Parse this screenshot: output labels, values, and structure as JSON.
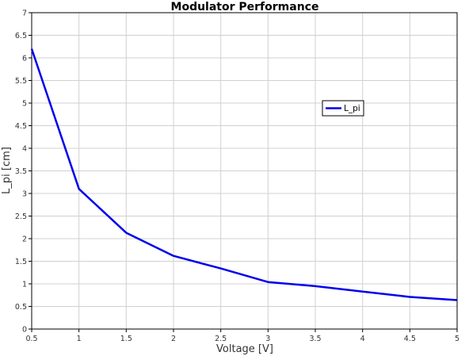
{
  "chart_data": {
    "type": "line",
    "title": "Modulator Performance",
    "xlabel": "Voltage [V]",
    "ylabel": "L_pi [cm]",
    "xlim": [
      0.5,
      5
    ],
    "ylim": [
      0,
      7
    ],
    "xticks": [
      "0.5",
      "1",
      "1.5",
      "2",
      "2.5",
      "3",
      "3.5",
      "4",
      "4.5",
      "5"
    ],
    "yticks": [
      "0",
      "0.5",
      "1",
      "1.5",
      "2",
      "2.5",
      "3",
      "3.5",
      "4",
      "4.5",
      "5",
      "5.5",
      "6",
      "6.5",
      "7"
    ],
    "grid": true,
    "legend_position": "upper-right",
    "series": [
      {
        "name": "L_pi",
        "color": "#0000ee",
        "x": [
          0.5,
          1,
          1.5,
          2,
          2.5,
          3,
          3.5,
          4,
          4.5,
          5
        ],
        "y": [
          6.2,
          3.1,
          2.13,
          1.62,
          1.34,
          1.04,
          0.95,
          0.83,
          0.71,
          0.64
        ]
      }
    ]
  }
}
